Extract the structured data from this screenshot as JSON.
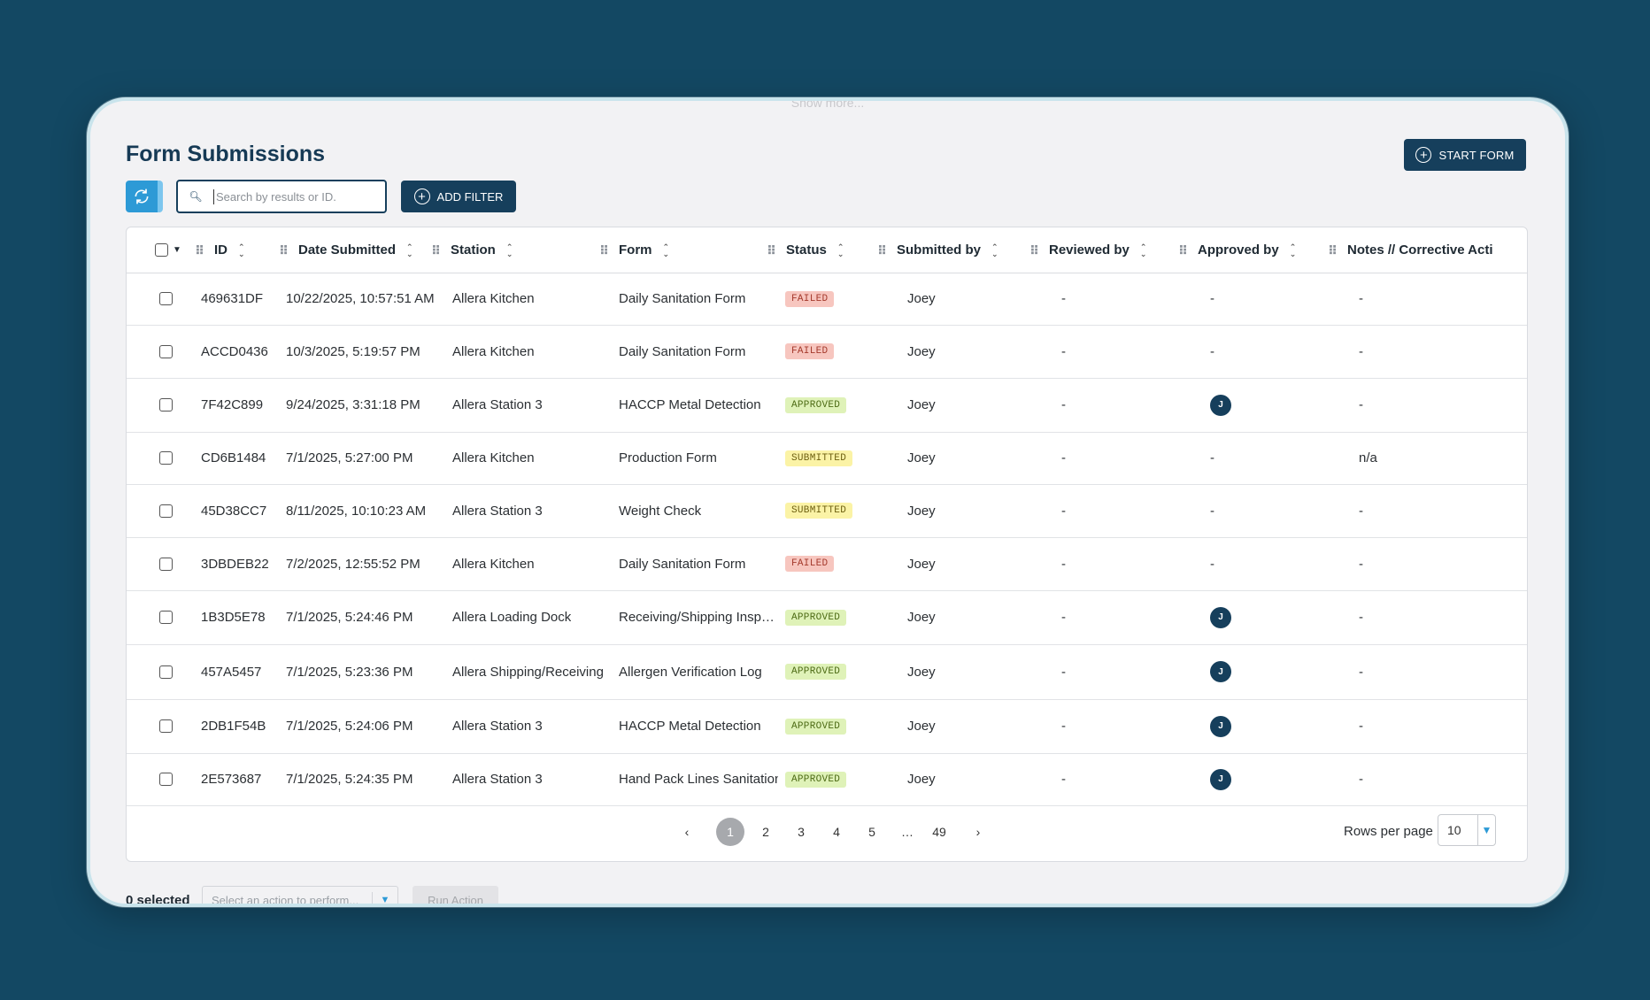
{
  "top_hint": "Show more...",
  "header": {
    "title": "Form Submissions",
    "start_form_label": "START FORM"
  },
  "toolbar": {
    "search_placeholder": "Search by results or ID.",
    "add_filter_label": "ADD FILTER"
  },
  "columns": [
    "ID",
    "Date Submitted",
    "Station",
    "Form",
    "Status",
    "Submitted by",
    "Reviewed by",
    "Approved by",
    "Notes // Corrective Acti"
  ],
  "rows": [
    {
      "id": "469631DF",
      "date": "10/22/2025, 10:57:51 AM",
      "station": "Allera Kitchen",
      "form": "Daily Sanitation Form",
      "status": "FAILED",
      "status_type": "failed",
      "submitted_by": "Joey",
      "reviewed_by": "-",
      "approved_by": "-",
      "approved_avatar": "",
      "notes": "-"
    },
    {
      "id": "ACCD0436",
      "date": "10/3/2025, 5:19:57 PM",
      "station": "Allera Kitchen",
      "form": "Daily Sanitation Form",
      "status": "FAILED",
      "status_type": "failed",
      "submitted_by": "Joey",
      "reviewed_by": "-",
      "approved_by": "-",
      "approved_avatar": "",
      "notes": "-"
    },
    {
      "id": "7F42C899",
      "date": "9/24/2025, 3:31:18 PM",
      "station": "Allera Station 3",
      "form": "HACCP Metal Detection",
      "status": "APPROVED",
      "status_type": "approved",
      "submitted_by": "Joey",
      "reviewed_by": "-",
      "approved_by": "",
      "approved_avatar": "J",
      "notes": "-"
    },
    {
      "id": "CD6B1484",
      "date": "7/1/2025, 5:27:00 PM",
      "station": "Allera Kitchen",
      "form": "Production Form",
      "status": "SUBMITTED",
      "status_type": "submitted",
      "submitted_by": "Joey",
      "reviewed_by": "-",
      "approved_by": "-",
      "approved_avatar": "",
      "notes": "n/a"
    },
    {
      "id": "45D38CC7",
      "date": "8/11/2025, 10:10:23 AM",
      "station": "Allera Station 3",
      "form": "Weight Check",
      "status": "SUBMITTED",
      "status_type": "submitted",
      "submitted_by": "Joey",
      "reviewed_by": "-",
      "approved_by": "-",
      "approved_avatar": "",
      "notes": "-"
    },
    {
      "id": "3DBDEB22",
      "date": "7/2/2025, 12:55:52 PM",
      "station": "Allera Kitchen",
      "form": "Daily Sanitation Form",
      "status": "FAILED",
      "status_type": "failed",
      "submitted_by": "Joey",
      "reviewed_by": "-",
      "approved_by": "-",
      "approved_avatar": "",
      "notes": "-"
    },
    {
      "id": "1B3D5E78",
      "date": "7/1/2025, 5:24:46 PM",
      "station": "Allera Loading Dock",
      "form": "Receiving/Shipping Insp…",
      "status": "APPROVED",
      "status_type": "approved",
      "submitted_by": "Joey",
      "reviewed_by": "-",
      "approved_by": "",
      "approved_avatar": "J",
      "notes": "-"
    },
    {
      "id": "457A5457",
      "date": "7/1/2025, 5:23:36 PM",
      "station": "Allera Shipping/Receiving",
      "form": "Allergen Verification Log",
      "status": "APPROVED",
      "status_type": "approved",
      "submitted_by": "Joey",
      "reviewed_by": "-",
      "approved_by": "",
      "approved_avatar": "J",
      "notes": "-"
    },
    {
      "id": "2DB1F54B",
      "date": "7/1/2025, 5:24:06 PM",
      "station": "Allera Station 3",
      "form": "HACCP Metal Detection",
      "status": "APPROVED",
      "status_type": "approved",
      "submitted_by": "Joey",
      "reviewed_by": "-",
      "approved_by": "",
      "approved_avatar": "J",
      "notes": "-"
    },
    {
      "id": "2E573687",
      "date": "7/1/2025, 5:24:35 PM",
      "station": "Allera Station 3",
      "form": "Hand Pack Lines Sanitation",
      "status": "APPROVED",
      "status_type": "approved",
      "submitted_by": "Joey",
      "reviewed_by": "-",
      "approved_by": "",
      "approved_avatar": "J",
      "notes": "-"
    }
  ],
  "pagination": {
    "prev": "‹",
    "pages": [
      "1",
      "2",
      "3",
      "4",
      "5",
      "…",
      "49"
    ],
    "active": "1",
    "next": "›",
    "rows_per_page_label": "Rows per page",
    "rows_per_page_value": "10"
  },
  "footer": {
    "selected_count": "0 selected",
    "action_placeholder": "Select an action to perform...",
    "run_action_label": "Run Action"
  },
  "colors": {
    "background": "#134863",
    "primary": "#163f5c",
    "accent": "#2d9ad6",
    "failed": "#f7c6bf",
    "approved": "#dff2b8",
    "submitted": "#fbf3a6"
  },
  "icons": {
    "refresh": "refresh-icon",
    "search": "search-icon",
    "add": "plus-circle-icon",
    "drag": "drag-handle-icon",
    "sort": "sort-icon",
    "dropdown": "caret-down-icon"
  }
}
